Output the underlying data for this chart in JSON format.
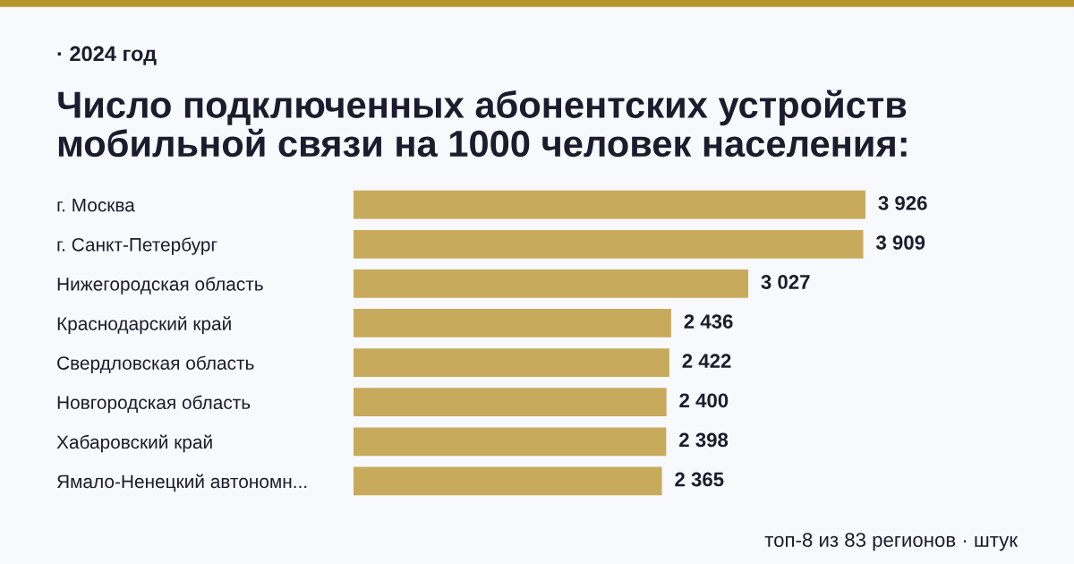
{
  "chart_data": {
    "type": "bar",
    "orientation": "horizontal",
    "title": "Число подключенных абонентских устройств\nмобильной связи на 1000 человек населения:",
    "subtitle": "· 2024 год",
    "categories": [
      "г. Москва",
      "г. Санкт-Петербург",
      "Нижегородская область",
      "Краснодарский край",
      "Свердловская область",
      "Новгородская область",
      "Хабаровский край",
      "Ямало-Ненецкий автономн..."
    ],
    "values": [
      3926,
      3909,
      3027,
      2436,
      2422,
      2400,
      2398,
      2365
    ],
    "value_labels": [
      "3 926",
      "3 909",
      "3 027",
      "2 436",
      "2 422",
      "2 400",
      "2 398",
      "2 365"
    ],
    "color": "#c8aa5c",
    "tick_labels": "y",
    "grid": false,
    "legend": false,
    "annotations": [
      "топ-8 из 83 регионов · штук"
    ]
  }
}
